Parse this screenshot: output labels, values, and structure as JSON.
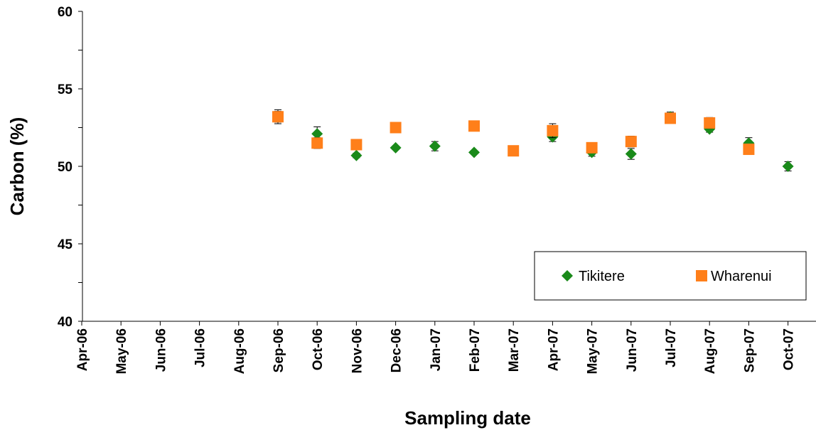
{
  "chart_data": {
    "type": "scatter",
    "title": "",
    "xlabel": "Sampling date",
    "ylabel": "Carbon (%)",
    "ylim": [
      40,
      60
    ],
    "y_ticks": [
      40,
      45,
      50,
      55,
      60
    ],
    "x_tick_labels": [
      "Apr-06",
      "May-06",
      "Jun-06",
      "Jul-06",
      "Aug-06",
      "Sep-06",
      "Oct-06",
      "Nov-06",
      "Dec-06",
      "Jan-07",
      "Feb-07",
      "Mar-07",
      "Apr-07",
      "May-07",
      "Jun-07",
      "Jul-07",
      "Aug-07",
      "Sep-07",
      "Oct-07"
    ],
    "xlim": [
      "Apr-06",
      "Oct-07"
    ],
    "grid": false,
    "legend_position": "bottom-right",
    "error_bars": true,
    "series": [
      {
        "name": "Tikitere",
        "marker": "diamond",
        "color": "#1a8a1a",
        "points": [
          {
            "x": "Sep-06",
            "y": 53.2,
            "err": 0.35
          },
          {
            "x": "Oct-06",
            "y": 52.1,
            "err": 0.45
          },
          {
            "x": "Nov-06",
            "y": 50.7,
            "err": 0.15
          },
          {
            "x": "Dec-06",
            "y": 51.2,
            "err": 0.1
          },
          {
            "x": "Jan-07",
            "y": 51.3,
            "err": 0.3
          },
          {
            "x": "Feb-07",
            "y": 50.9,
            "err": 0.1
          },
          {
            "x": "Apr-07",
            "y": 51.9,
            "err": 0.3
          },
          {
            "x": "May-07",
            "y": 50.9,
            "err": 0.25
          },
          {
            "x": "Jun-07",
            "y": 50.8,
            "err": 0.35
          },
          {
            "x": "Jul-07",
            "y": 53.2,
            "err": 0.3
          },
          {
            "x": "Aug-07",
            "y": 52.4,
            "err": 0.2
          },
          {
            "x": "Sep-07",
            "y": 51.5,
            "err": 0.35
          },
          {
            "x": "Oct-07",
            "y": 50.0,
            "err": 0.3
          }
        ]
      },
      {
        "name": "Wharenui",
        "marker": "square",
        "color": "#ff7f1a",
        "points": [
          {
            "x": "Sep-06",
            "y": 53.2,
            "err": 0.45
          },
          {
            "x": "Oct-06",
            "y": 51.5,
            "err": 0.35
          },
          {
            "x": "Nov-06",
            "y": 51.4,
            "err": 0.1
          },
          {
            "x": "Dec-06",
            "y": 52.5,
            "err": 0.1
          },
          {
            "x": "Feb-07",
            "y": 52.6,
            "err": 0.15
          },
          {
            "x": "Mar-07",
            "y": 51.0,
            "err": 0.3
          },
          {
            "x": "Apr-07",
            "y": 52.3,
            "err": 0.45
          },
          {
            "x": "May-07",
            "y": 51.2,
            "err": 0.1
          },
          {
            "x": "Jun-07",
            "y": 51.6,
            "err": 0.35
          },
          {
            "x": "Jul-07",
            "y": 53.1,
            "err": 0.25
          },
          {
            "x": "Aug-07",
            "y": 52.8,
            "err": 0.35
          },
          {
            "x": "Sep-07",
            "y": 51.1,
            "err": 0.1
          }
        ]
      }
    ]
  }
}
